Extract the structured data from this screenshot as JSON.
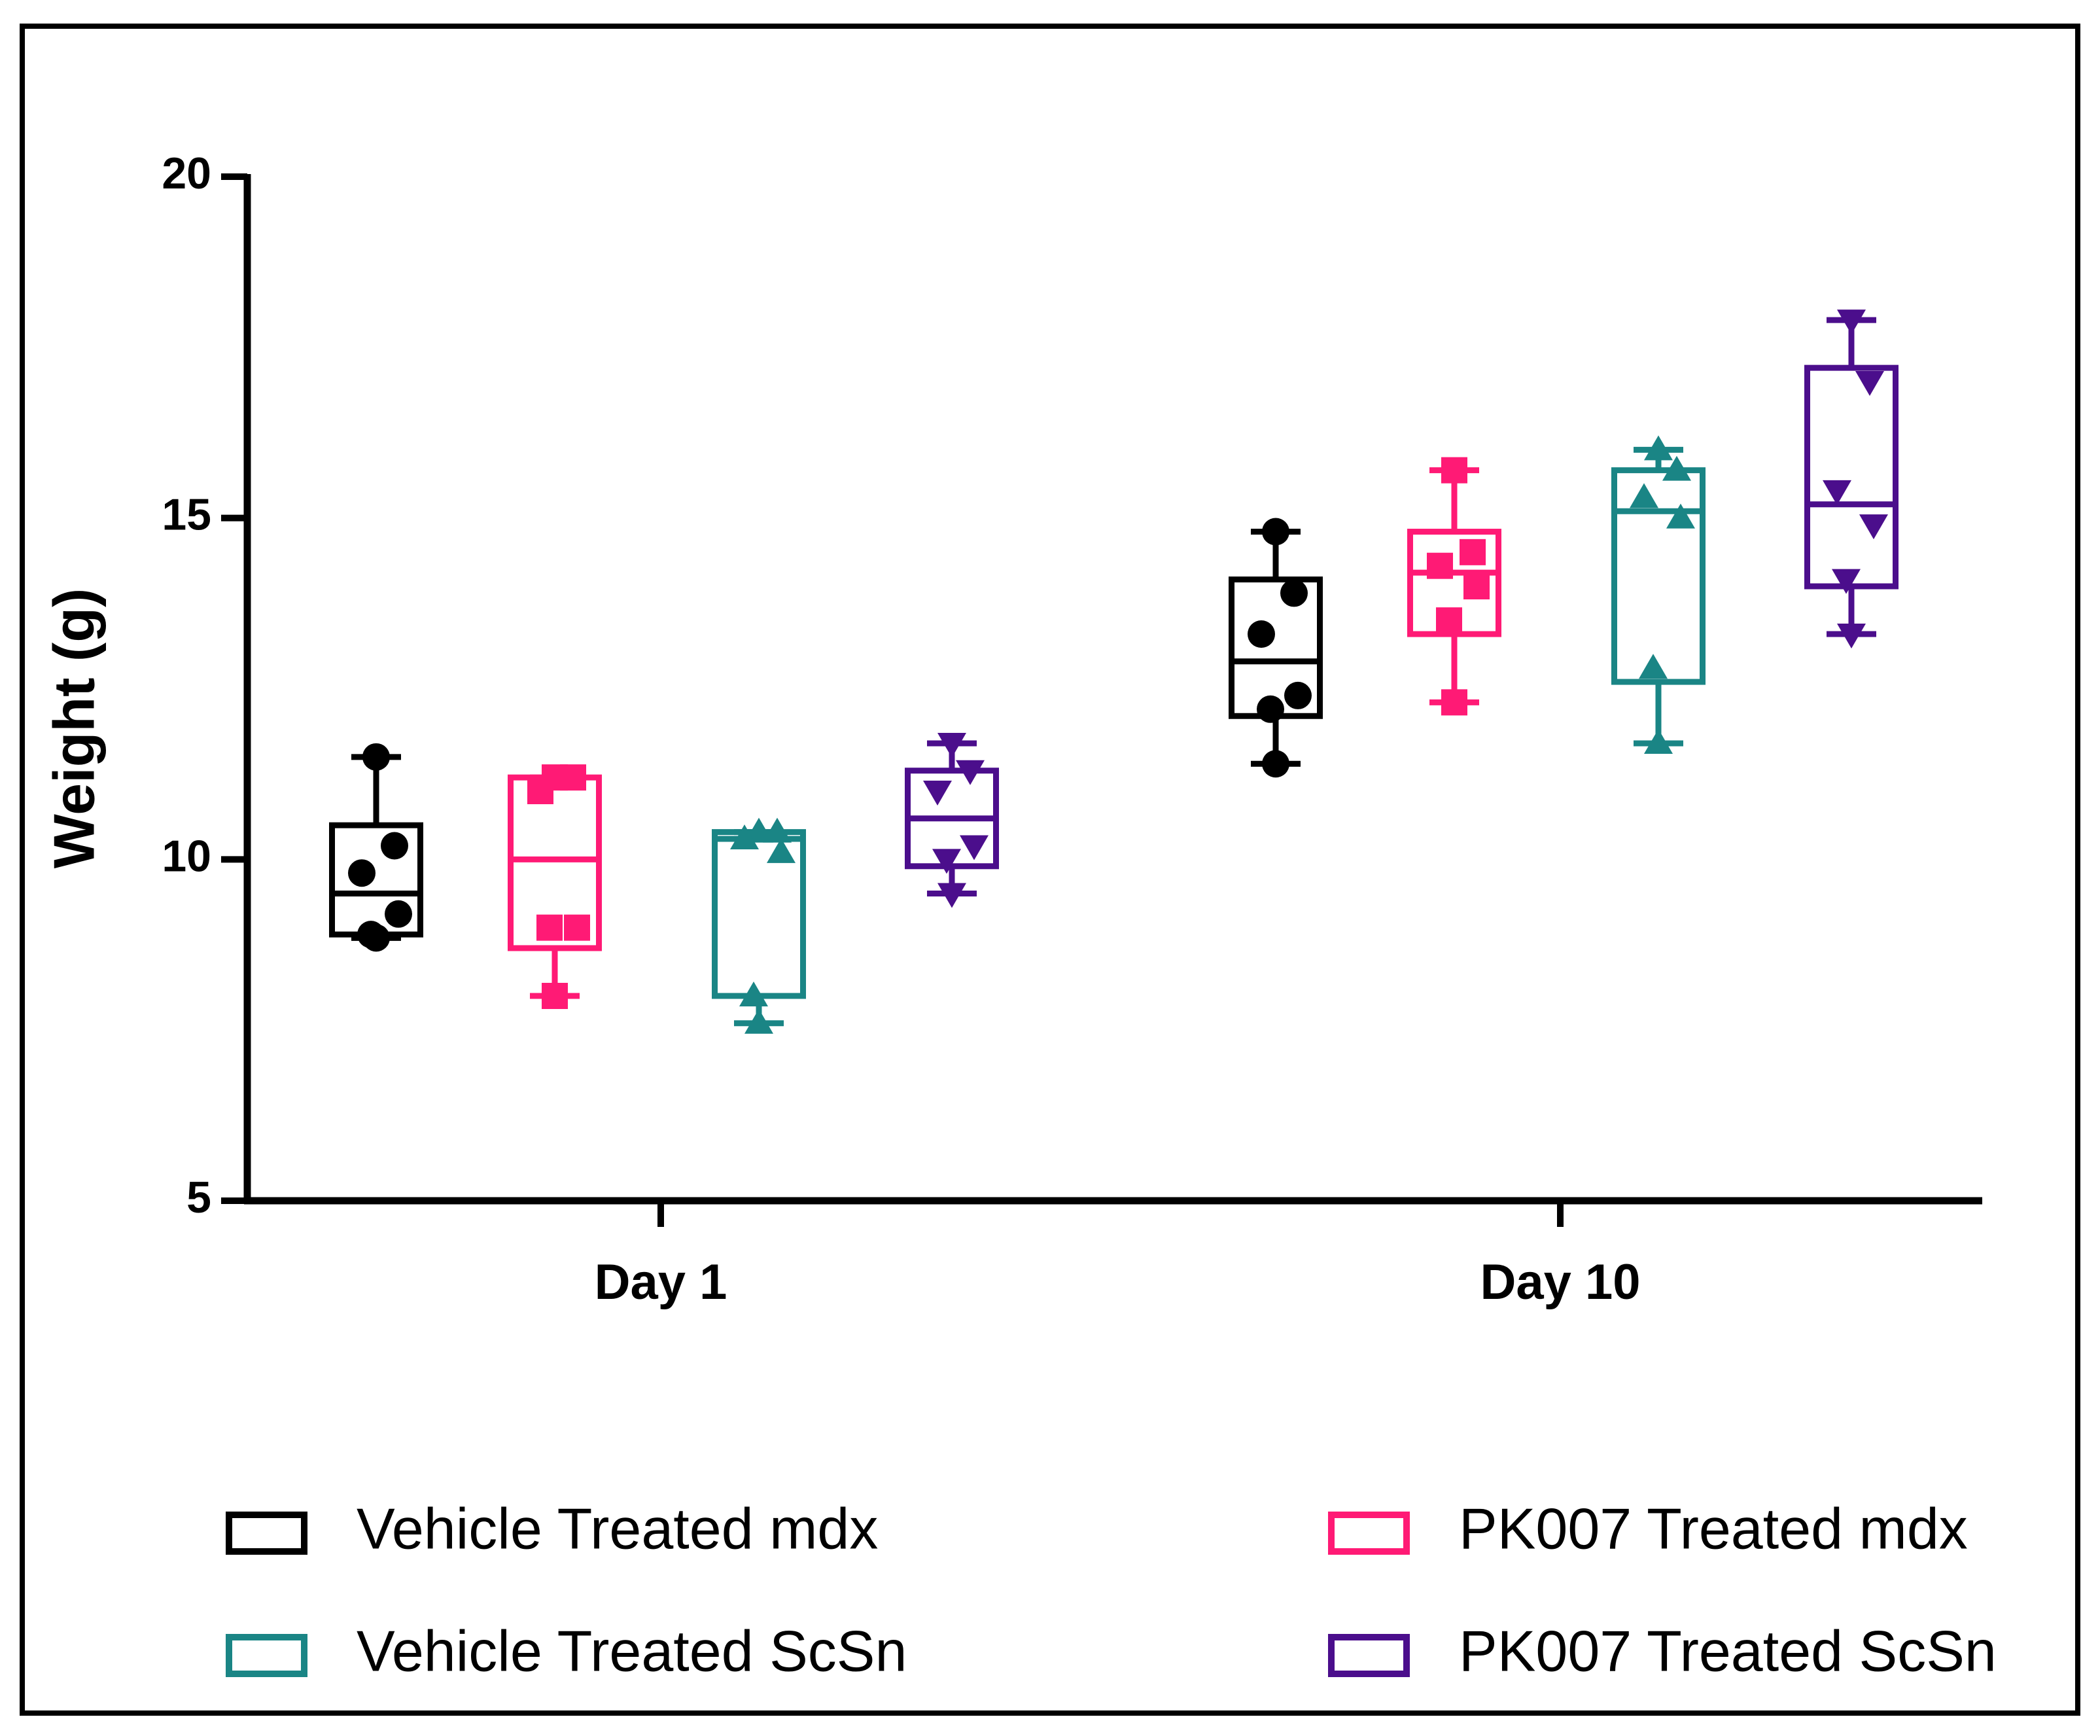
{
  "chart_data": {
    "type": "box",
    "title": "",
    "xlabel": "",
    "ylabel": "Weight (g)",
    "ylim": [
      5,
      20
    ],
    "yticks": [
      5,
      10,
      15,
      20
    ],
    "categories": [
      "Day 1",
      "Day 10"
    ],
    "series": [
      {
        "name": "Vehicle Treated mdx",
        "color": "#000000",
        "marker": "circle",
        "boxes": [
          {
            "min": 8.85,
            "q1": 8.9,
            "median": 9.5,
            "q3": 10.5,
            "max": 11.5,
            "points": [
              11.5,
              10.2,
              9.8,
              9.2,
              8.9,
              8.85
            ]
          },
          {
            "min": 11.4,
            "q1": 12.1,
            "median": 12.9,
            "q3": 14.1,
            "max": 14.8,
            "points": [
              14.8,
              13.9,
              13.3,
              12.4,
              12.2,
              11.4
            ]
          }
        ]
      },
      {
        "name": "PK007 Treated mdx",
        "color": "#ff1a75",
        "marker": "square",
        "boxes": [
          {
            "min": 8.0,
            "q1": 8.7,
            "median": 10.0,
            "q3": 11.2,
            "max": 11.2,
            "points": [
              11.2,
              11.2,
              11.0,
              9.0,
              9.0,
              8.0
            ]
          },
          {
            "min": 12.3,
            "q1": 13.3,
            "median": 14.2,
            "q3": 14.8,
            "max": 15.7,
            "points": [
              15.7,
              14.5,
              14.3,
              14.0,
              13.5,
              12.3
            ]
          }
        ]
      },
      {
        "name": "Vehicle Treated ScSn",
        "color": "#1a8585",
        "marker": "triangle-up",
        "boxes": [
          {
            "min": 7.6,
            "q1": 8.0,
            "median": 10.3,
            "q3": 10.4,
            "max": 10.4,
            "points": [
              10.4,
              10.4,
              10.3,
              10.1,
              8.0,
              7.6
            ]
          },
          {
            "min": 11.7,
            "q1": 12.6,
            "median": 15.1,
            "q3": 15.7,
            "max": 16.0,
            "points": [
              16.0,
              15.7,
              15.3,
              15.0,
              12.8,
              11.7
            ]
          }
        ]
      },
      {
        "name": "PK007 Treated ScSn",
        "color": "#4b0e8c",
        "marker": "triangle-down",
        "boxes": [
          {
            "min": 9.5,
            "q1": 9.9,
            "median": 10.6,
            "q3": 11.3,
            "max": 11.7,
            "points": [
              11.7,
              11.3,
              11.0,
              10.2,
              10.0,
              9.5
            ]
          },
          {
            "min": 13.3,
            "q1": 14.0,
            "median": 15.2,
            "q3": 17.2,
            "max": 17.9,
            "points": [
              17.9,
              17.0,
              15.4,
              14.9,
              14.1,
              13.3
            ]
          }
        ]
      }
    ],
    "legend": {
      "placement": "bottom",
      "columns": 2,
      "order": [
        "Vehicle Treated mdx",
        "PK007 Treated mdx",
        "Vehicle Treated ScSn",
        "PK007 Treated ScSn"
      ]
    }
  }
}
